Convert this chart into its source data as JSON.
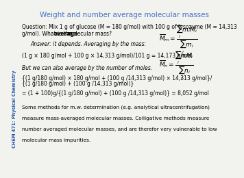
{
  "title": "Weight and number average molecular masses",
  "title_color": "#4472C4",
  "title_fontsize": 7.5,
  "sidebar_text": "CHEM 471: Physical Chemistry",
  "sidebar_color": "#2255AA",
  "background_color": "#F2F2EE",
  "q_line1": "Question: Mix 1 g of glucose (M = 180 g/mol) with 100 g of lysozyme (M = 14,313",
  "q_line2a": "g/mol). What is the ",
  "q_line2b": "average",
  "q_line2c": " molecular mass?",
  "answer_label": "Answer: it depends. Averaging by the mass:",
  "calc1": "(1 g × 180 g/mol + 100 g × 14,313 g/mol)/101 g = 14,173 g/mol",
  "number_avg_label": "But we can also average by the number of moles.",
  "calc2a": "{(1 g/180 g/mol) × 180 g/mol + (100 g /14,313 g/mol) × 14,313 g/mol}/",
  "calc2b": "{(1 g/180 g/mol) + (100 g /14,313 g/mol)}",
  "calc3": "= (1 + 100)g/{(1 g/180 g/mol) + (100 g /14,313 g/mol)} = 8,052 g/mol",
  "footer_line1": "Some methods for m.w. determination (e.g. analytical ultracentrifugation)",
  "footer_line2": "measure mass-averaged molecular masses. Colligative methods measure",
  "footer_line3": "number averaged molecular masses, and are therefor very vulnerable to low",
  "footer_line4": "molecular mass impurities.",
  "body_fontsize": 5.5,
  "formula_fontsize": 6.0
}
